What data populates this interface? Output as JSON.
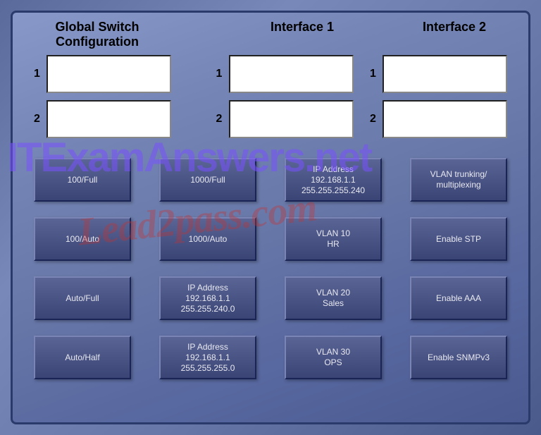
{
  "headers": {
    "col1": "Global Switch\nConfiguration",
    "col2": "Interface 1",
    "col3": "Interface 2"
  },
  "slots": {
    "labels": [
      "1",
      "2"
    ]
  },
  "buttons": {
    "r0c0": "100/Full",
    "r0c1": "1000/Full",
    "r0c2": "IP Address\n192.168.1.1\n255.255.255.240",
    "r0c3": "VLAN trunking/\nmultiplexing",
    "r1c0": "100/Auto",
    "r1c1": "1000/Auto",
    "r1c2": "VLAN 10\nHR",
    "r1c3": "Enable STP",
    "r2c0": "Auto/Full",
    "r2c1": "IP Address\n192.168.1.1\n255.255.240.0",
    "r2c2": "VLAN 20\nSales",
    "r2c3": "Enable AAA",
    "r3c0": "Auto/Half",
    "r3c1": "IP Address\n192.168.1.1\n255.255.255.0",
    "r3c2": "VLAN 30\nOPS",
    "r3c3": "Enable SNMPv3"
  },
  "watermarks": {
    "w1": "ITExamAnswers.net",
    "w2": "Lead2pass.com"
  },
  "colors": {
    "button_bg_top": "#5a6595",
    "button_bg_bottom": "#3a4575",
    "button_text": "#e8e8f0",
    "panel_grad_start": "#8898c8",
    "panel_grad_end": "#4a5a90",
    "border": "#2a3a6a"
  }
}
